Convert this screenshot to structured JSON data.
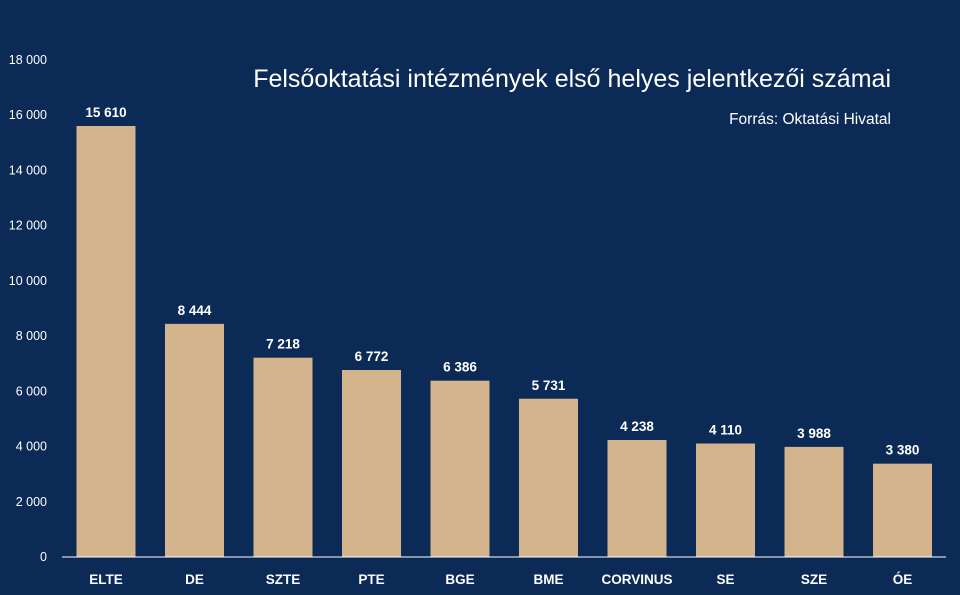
{
  "colors": {
    "background": "#0b2a55",
    "bar": "#d4b48c",
    "text": "#ffffff",
    "axis": "#ffffff"
  },
  "chart_data": {
    "type": "bar",
    "title": "Felsőoktatási intézmények első helyes jelentkezői számai",
    "subtitle": "Forrás: Oktatási Hivatal",
    "xlabel": "",
    "ylabel": "",
    "ylim": [
      0,
      18000
    ],
    "yticks": [
      0,
      2000,
      4000,
      6000,
      8000,
      10000,
      12000,
      14000,
      16000,
      18000
    ],
    "ytick_labels": [
      "0",
      "2 000",
      "4 000",
      "6 000",
      "8 000",
      "10 000",
      "12 000",
      "14 000",
      "16 000",
      "18 000"
    ],
    "grid": false,
    "categories": [
      "ELTE",
      "DE",
      "SZTE",
      "PTE",
      "BGE",
      "BME",
      "CORVINUS",
      "SE",
      "SZE",
      "ÓE"
    ],
    "values": [
      15610,
      8444,
      7218,
      6772,
      6386,
      5731,
      4238,
      4110,
      3988,
      3380
    ],
    "value_labels": [
      "15 610",
      "8 444",
      "7 218",
      "6 772",
      "6 386",
      "5 731",
      "4 238",
      "4 110",
      "3 988",
      "3 380"
    ]
  }
}
